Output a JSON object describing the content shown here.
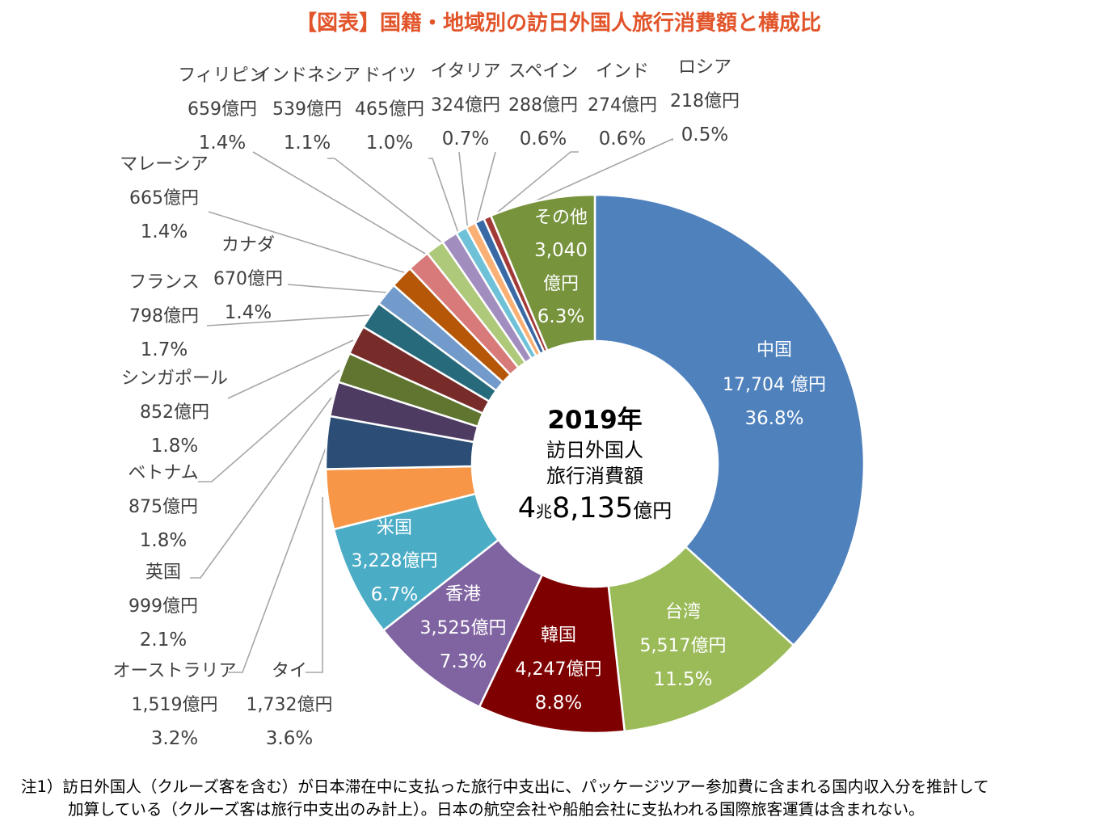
{
  "title": "【図表】国籍・地域別の訪日外国人旅行消費額と構成比",
  "center": {
    "year": "2019年",
    "line1": "訪日外国人",
    "line2": "旅行消費額",
    "total_prefix": "4",
    "total_unit1": "兆",
    "total_mid": "8,135",
    "total_unit2": "億円"
  },
  "note": {
    "line1": "注1）訪日外国人（クルーズ客を含む）が日本滞在中に支払った旅行中支出に、パッケージツアー参加費に含まれる国内収入分を推計して",
    "line2": "加算している（クルーズ客は旅行中支出のみ計上）。日本の航空会社や船舶会社に支払われる国際旅客運賃は含まれない。"
  },
  "chart_data": {
    "type": "pie",
    "donut": true,
    "title": "【図表】国籍・地域別の訪日外国人旅行消費額と構成比",
    "unit": "億円",
    "total": 48135,
    "slices": [
      {
        "name": "中国",
        "value": 17704,
        "value_label": "17,704 億円",
        "pct": "36.8%",
        "color": "#4f81bd",
        "label_inside": true
      },
      {
        "name": "台湾",
        "value": 5517,
        "value_label": "5,517億円",
        "pct": "11.5%",
        "color": "#9bbb59",
        "label_inside": true
      },
      {
        "name": "韓国",
        "value": 4247,
        "value_label": "4,247億円",
        "pct": "8.8%",
        "color": "#7f0000",
        "label_inside": true
      },
      {
        "name": "香港",
        "value": 3525,
        "value_label": "3,525億円",
        "pct": "7.3%",
        "color": "#8064a2",
        "label_inside": true
      },
      {
        "name": "米国",
        "value": 3228,
        "value_label": "3,228億円",
        "pct": "6.7%",
        "color": "#4bacc6",
        "label_inside": true
      },
      {
        "name": "タイ",
        "value": 1732,
        "value_label": "1,732億円",
        "pct": "3.6%",
        "color": "#f79646",
        "label_inside": false
      },
      {
        "name": "オーストラリア",
        "value": 1519,
        "value_label": "1,519億円",
        "pct": "3.2%",
        "color": "#2c4d75",
        "label_inside": false
      },
      {
        "name": "英国",
        "value": 999,
        "value_label": "999億円",
        "pct": "2.1%",
        "color": "#4d3b62",
        "label_inside": false
      },
      {
        "name": "ベトナム",
        "value": 875,
        "value_label": "875億円",
        "pct": "1.8%",
        "color": "#5f7530",
        "label_inside": false
      },
      {
        "name": "シンガポール",
        "value": 852,
        "value_label": "852億円",
        "pct": "1.8%",
        "color": "#772c2a",
        "label_inside": false
      },
      {
        "name": "フランス",
        "value": 798,
        "value_label": "798億円",
        "pct": "1.7%",
        "color": "#276a7c",
        "label_inside": false
      },
      {
        "name": "カナダ",
        "value": 670,
        "value_label": "670億円",
        "pct": "1.4%",
        "color": "#729aca",
        "label_inside": false
      },
      {
        "name": "マレーシア",
        "value": 665,
        "value_label": "665億円",
        "pct": "1.4%",
        "color": "#b65708",
        "label_inside": false
      },
      {
        "name": "フィリピン",
        "value": 659,
        "value_label": "659億円",
        "pct": "1.4%",
        "color": "#d87a7a",
        "label_inside": false
      },
      {
        "name": "インドネシア",
        "value": 539,
        "value_label": "539億円",
        "pct": "1.1%",
        "color": "#afc97a",
        "label_inside": false
      },
      {
        "name": "ドイツ",
        "value": 465,
        "value_label": "465億円",
        "pct": "1.0%",
        "color": "#a28dbf",
        "label_inside": false
      },
      {
        "name": "イタリア",
        "value": 324,
        "value_label": "324億円",
        "pct": "0.7%",
        "color": "#6fc1d8",
        "label_inside": false
      },
      {
        "name": "スペイン",
        "value": 288,
        "value_label": "288億円",
        "pct": "0.6%",
        "color": "#f9b074",
        "label_inside": false
      },
      {
        "name": "インド",
        "value": 274,
        "value_label": "274億円",
        "pct": "0.6%",
        "color": "#3a6aa6",
        "label_inside": false
      },
      {
        "name": "ロシア",
        "value": 218,
        "value_label": "218億円",
        "pct": "0.5%",
        "color": "#a23b38",
        "label_inside": false
      },
      {
        "name": "その他",
        "value": 3040,
        "value_label_lines": [
          "3,040",
          "億円"
        ],
        "pct": "6.3%",
        "color": "#77933c",
        "label_inside": true
      }
    ]
  }
}
